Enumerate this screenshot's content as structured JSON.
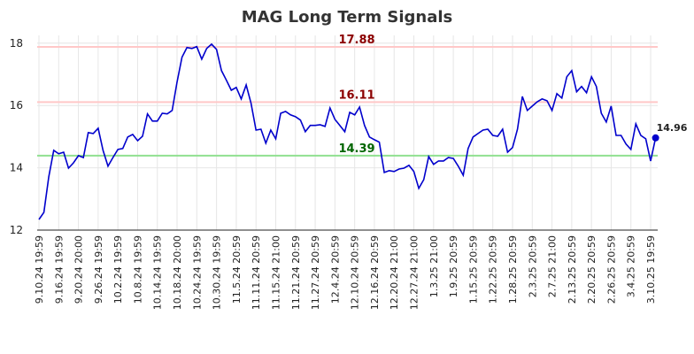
{
  "chart_data": {
    "type": "line",
    "title": "MAG Long Term Signals",
    "categories": [
      "9.10.24 19:59",
      null,
      null,
      null,
      "9.16.24 19:59",
      null,
      null,
      null,
      "9.20.24 20:00",
      null,
      null,
      null,
      "9.26.24 19:59",
      null,
      null,
      null,
      "10.2.24 19:59",
      null,
      null,
      null,
      "10.8.24 19:59",
      null,
      null,
      null,
      "10.14.24 19:59",
      null,
      null,
      null,
      "10.18.24 20:00",
      null,
      null,
      null,
      "10.24.24 19:59",
      null,
      null,
      null,
      "10.30.24 19:59",
      null,
      null,
      null,
      "11.5.24 20:59",
      null,
      null,
      null,
      "11.11.24 20:59",
      null,
      null,
      null,
      "11.15.24 21:00",
      null,
      null,
      null,
      "11.21.24 20:59",
      null,
      null,
      null,
      "11.27.24 20:59",
      null,
      null,
      null,
      "12.4.24 20:59",
      null,
      null,
      null,
      "12.10.24 20:59",
      null,
      null,
      null,
      "12.16.24 20:59",
      null,
      null,
      null,
      "12.20.24 21:00",
      null,
      null,
      null,
      "12.27.24 21:00",
      null,
      null,
      null,
      "1.3.25 21:00",
      null,
      null,
      null,
      "1.9.25 20:59",
      null,
      null,
      null,
      "1.15.25 20:59",
      null,
      null,
      null,
      "1.22.25 20:59",
      null,
      null,
      null,
      "1.28.25 20:59",
      null,
      null,
      null,
      "2.3.25 20:59",
      null,
      null,
      null,
      "2.7.25 21:00",
      null,
      null,
      null,
      "2.13.25 20:59",
      null,
      null,
      null,
      "2.20.25 20:59",
      null,
      null,
      null,
      "2.26.25 20:59",
      null,
      null,
      null,
      "3.4.25 20:59",
      null,
      null,
      null,
      "3.10.25 19:59",
      null
    ],
    "series": [
      {
        "color": "#0000cc",
        "values": [
          12.34,
          12.57,
          13.71,
          14.56,
          14.45,
          14.5,
          13.99,
          14.16,
          14.39,
          14.33,
          15.13,
          15.1,
          15.27,
          14.56,
          14.05,
          14.33,
          14.59,
          14.62,
          14.99,
          15.07,
          14.87,
          15.01,
          15.73,
          15.5,
          15.5,
          15.75,
          15.73,
          15.84,
          16.75,
          17.55,
          17.86,
          17.83,
          17.89,
          17.49,
          17.83,
          17.97,
          17.8,
          17.12,
          16.81,
          16.49,
          16.58,
          16.21,
          16.66,
          16.07,
          15.21,
          15.24,
          14.79,
          15.21,
          14.93,
          15.75,
          15.81,
          15.7,
          15.64,
          15.53,
          15.16,
          15.36,
          15.36,
          15.38,
          15.33,
          15.92,
          15.55,
          15.36,
          15.16,
          15.78,
          15.7,
          15.95,
          15.36,
          14.99,
          14.9,
          14.82,
          13.85,
          13.91,
          13.88,
          13.96,
          13.99,
          14.08,
          13.88,
          13.34,
          13.62,
          14.36,
          14.11,
          14.22,
          14.22,
          14.33,
          14.3,
          14.05,
          13.76,
          14.62,
          14.99,
          15.1,
          15.21,
          15.24,
          15.04,
          15.01,
          15.24,
          14.5,
          14.65,
          15.24,
          16.29,
          15.84,
          15.98,
          16.12,
          16.21,
          16.15,
          15.84,
          16.38,
          16.24,
          16.92,
          17.12,
          16.44,
          16.61,
          16.41,
          16.92,
          16.61,
          15.75,
          15.47,
          15.98,
          15.04,
          15.04,
          14.76,
          14.59,
          15.41,
          15.04,
          14.93,
          14.22,
          14.96
        ]
      }
    ],
    "reference_lines": [
      {
        "value": 17.88,
        "color": "#ffc8c8",
        "label_color": "#8b0000"
      },
      {
        "value": 16.11,
        "color": "#ffc8c8",
        "label_color": "#8b0000"
      },
      {
        "value": 14.39,
        "color": "#90e090",
        "label_color": "#006400"
      }
    ],
    "ylim": [
      12,
      18.25
    ],
    "yticks": [
      12,
      14,
      16,
      18
    ],
    "grid": true
  }
}
